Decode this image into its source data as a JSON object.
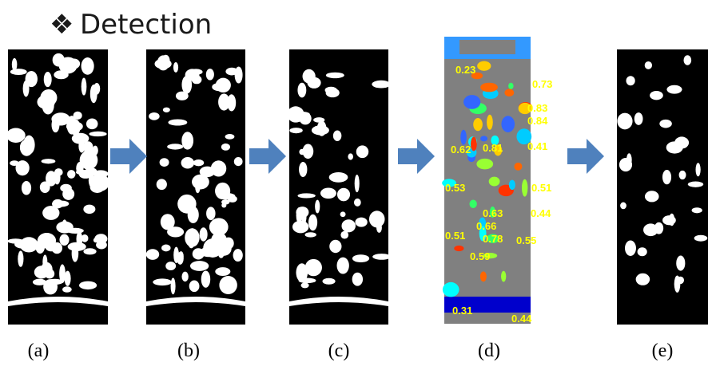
{
  "header": {
    "title": "Detection"
  },
  "panels": [
    {
      "label": "(a)"
    },
    {
      "label": "(b)"
    },
    {
      "label": "(c)"
    },
    {
      "label": "(d)",
      "scores": [
        "0.23",
        "0.73",
        "0.83",
        "0.84",
        "0.62",
        "0.81",
        "0.41",
        "0.53",
        "0.51",
        "0.44",
        "0.63",
        "0.66",
        "0.51",
        "0.78",
        "0.55",
        "0.59",
        "0.31",
        "0.44"
      ]
    },
    {
      "label": "(e)"
    }
  ]
}
